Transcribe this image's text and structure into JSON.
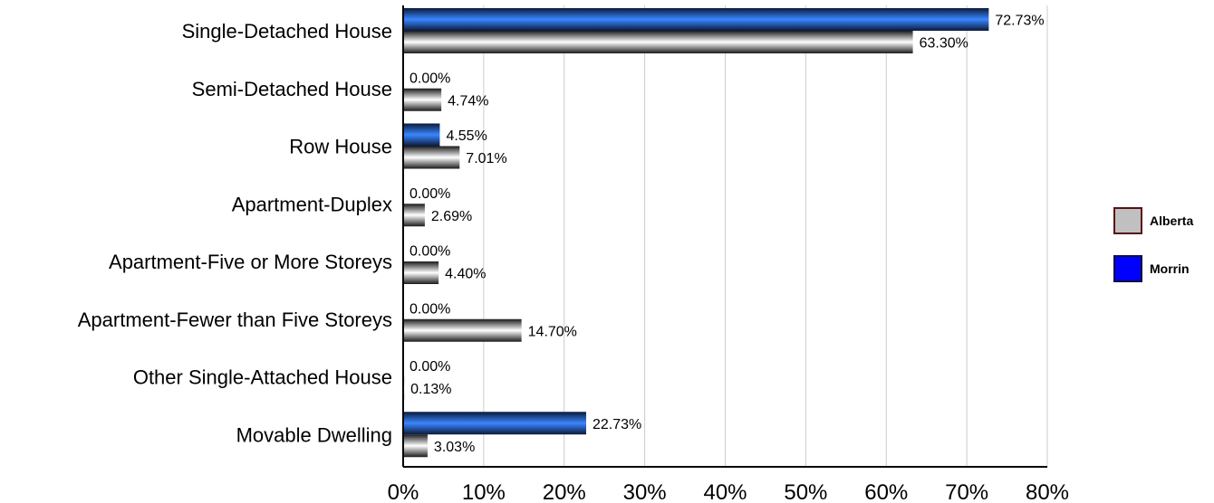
{
  "chart_data": {
    "type": "bar",
    "orientation": "horizontal",
    "categories": [
      "Single-Detached House",
      "Semi-Detached House",
      "Row House",
      "Apartment-Duplex",
      "Apartment-Five or More Storeys",
      "Apartment-Fewer than Five Storeys",
      "Other Single-Attached House",
      "Movable Dwelling"
    ],
    "series": [
      {
        "name": "Morrin",
        "values": [
          72.73,
          0.0,
          4.55,
          0.0,
          0.0,
          0.0,
          0.0,
          22.73
        ],
        "labels": [
          "72.73%",
          "0.00%",
          "4.55%",
          "0.00%",
          "0.00%",
          "0.00%",
          "0.00%",
          "22.73%"
        ],
        "color": "#2a6fd6",
        "legend_color": "#0000ff"
      },
      {
        "name": "Alberta",
        "values": [
          63.3,
          4.74,
          7.01,
          2.69,
          4.4,
          14.7,
          0.13,
          3.03
        ],
        "labels": [
          "63.30%",
          "4.74%",
          "7.01%",
          "2.69%",
          "4.40%",
          "14.70%",
          "0.13%",
          "3.03%"
        ],
        "color": "#c0c0c0",
        "legend_color": "#c0c0c0"
      }
    ],
    "xlim": [
      0,
      80
    ],
    "x_ticks": [
      "0%",
      "10%",
      "20%",
      "30%",
      "40%",
      "50%",
      "60%",
      "70%",
      "80%"
    ],
    "grid": true,
    "legend": {
      "placement": "right",
      "entries": [
        "Alberta",
        "Morrin"
      ]
    },
    "title": "",
    "xlabel": "",
    "ylabel": ""
  }
}
